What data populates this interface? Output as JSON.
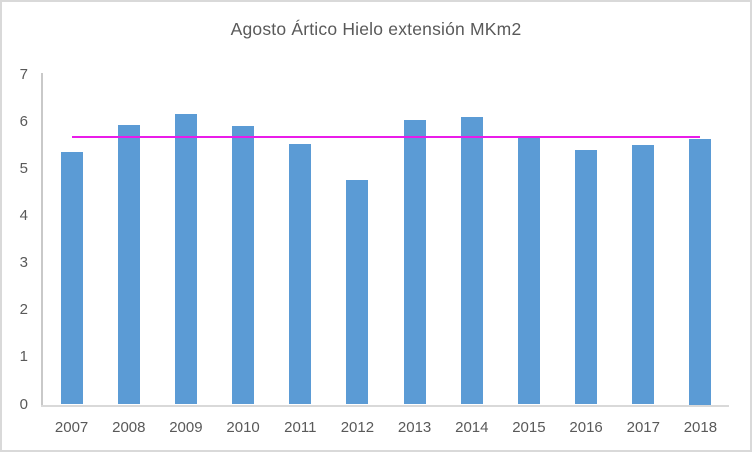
{
  "title": "Agosto Ártico Hielo extensión MKm2",
  "colors": {
    "bar": "#5b9bd5",
    "mean_line": "#e91ce9",
    "axis_line": "#d0d0d0",
    "text": "#595959",
    "frame": "#d9d9d9",
    "background": "#ffffff"
  },
  "chart_data": {
    "type": "bar",
    "title": "Agosto Ártico Hielo extensión MKm2",
    "categories": [
      "2007",
      "2008",
      "2009",
      "2010",
      "2011",
      "2012",
      "2013",
      "2014",
      "2015",
      "2016",
      "2017",
      "2018"
    ],
    "values": [
      5.37,
      5.94,
      6.17,
      5.92,
      5.53,
      4.76,
      6.04,
      6.11,
      5.66,
      5.4,
      5.52,
      5.65
    ],
    "mean_line_value": 5.68,
    "xlabel": "",
    "ylabel": "",
    "ylim": [
      0,
      7
    ],
    "yticks": [
      0,
      1,
      2,
      3,
      4,
      5,
      6,
      7
    ],
    "grid": false,
    "legend_position": "none"
  }
}
